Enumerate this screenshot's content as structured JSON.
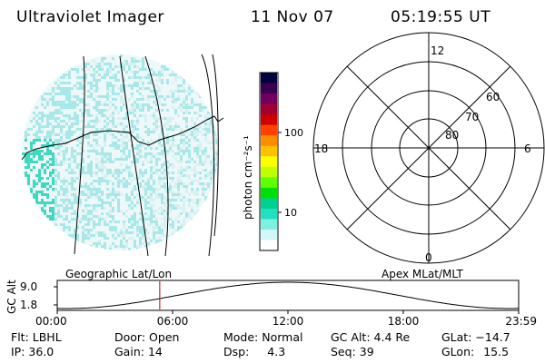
{
  "header": {
    "instrument": "Ultraviolet Imager",
    "date": "11 Nov 07",
    "time": "05:19:55 UT"
  },
  "colorbar": {
    "unit_label": "photon cm⁻²s⁻¹",
    "tick_labels": [
      "100",
      "10"
    ],
    "colors": [
      "#000040",
      "#3a0050",
      "#700060",
      "#a00030",
      "#d00000",
      "#ff4000",
      "#ff8c00",
      "#ffc000",
      "#ffff00",
      "#c0ff00",
      "#60ff00",
      "#00e000",
      "#00d090",
      "#20e0c0",
      "#80f0e0",
      "#d0f8f8",
      "#ffffff"
    ]
  },
  "image_panel": {
    "label": "Geographic Lat/Lon"
  },
  "polar_plot": {
    "label": "Apex MLat/MLT",
    "mlt_labels": {
      "top": "12",
      "left": "18",
      "right": "6",
      "bottom": "0"
    },
    "lat_labels": [
      "60",
      "70",
      "80"
    ]
  },
  "timeline": {
    "ylabel": "GC Alt",
    "y_ticks": [
      "9.0",
      "1.8"
    ],
    "x_ticks": [
      "00:00",
      "06:00",
      "12:00",
      "18:00",
      "23:59"
    ],
    "current_time_fraction": 0.2222
  },
  "info": {
    "flt_label": "Flt:",
    "flt_value": "LBHL",
    "ip_label": "IP:",
    "ip_value": "36.0",
    "door_label": "Door:",
    "door_value": "Open",
    "gain_label": "Gain:",
    "gain_value": "14",
    "mode_label": "Mode:",
    "mode_value": "Normal",
    "dsp_label": "Dsp:",
    "dsp_value": "4.3",
    "gcalt_label": "GC Alt:",
    "gcalt_value": "4.4 Re",
    "seq_label": "Seq:",
    "seq_value": "39",
    "glat_label": "GLat:",
    "glat_value": "−14.7",
    "glon_label": "GLon:",
    "glon_value": "15.5"
  },
  "colors": {
    "speckle_light": "#d8f0f0",
    "speckle_mid": "#a8e8e8",
    "speckle_dark": "#40d8c0",
    "marker": "#b00000"
  }
}
